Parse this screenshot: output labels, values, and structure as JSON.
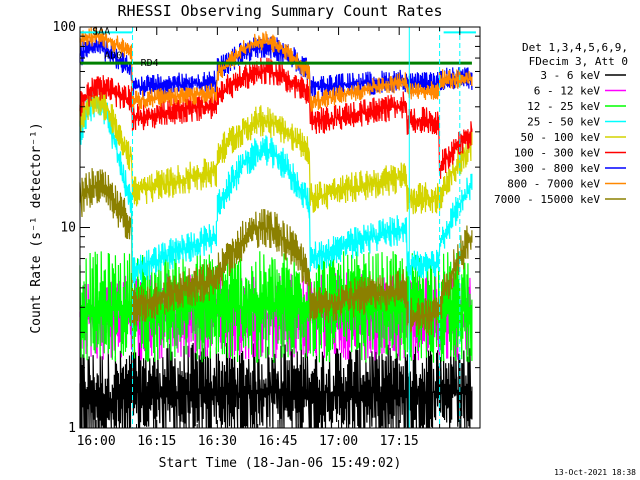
{
  "chart_data": {
    "type": "line",
    "title": "RHESSI Observing Summary Count Rates",
    "xlabel": "Start Time (18-Jan-06 15:49:02)",
    "ylabel": "Count Rate (s⁻¹ detector⁻¹)",
    "yscale": "log",
    "ylim": [
      1,
      100
    ],
    "xlim_minutes": [
      -4,
      95
    ],
    "xtick_labels": [
      "16:00",
      "16:15",
      "16:30",
      "16:45",
      "17:00",
      "17:15"
    ],
    "xtick_minutes": [
      0,
      15,
      30,
      45,
      60,
      75
    ],
    "ytick_labels": [
      "1",
      "10",
      "100"
    ],
    "ytick_values": [
      1,
      10,
      100
    ],
    "legend_header": [
      "Det 1,3,4,5,6,9,",
      "FDecim 3, Att 0"
    ],
    "legend_placement": "right",
    "annotations": [
      {
        "text": "SAA",
        "x_minute": -1,
        "y": 95
      },
      {
        "text": "AD0",
        "x_minute": 2,
        "y": 72
      },
      {
        "text": "RD4",
        "x_minute": 11,
        "y": 66
      }
    ],
    "orbit_transitions_minutes": [
      9,
      30,
      53,
      77,
      85
    ],
    "series": [
      {
        "name": "3 - 6 keV",
        "color": "#000000"
      },
      {
        "name": "6 - 12 keV",
        "color": "#ff00ff"
      },
      {
        "name": "12 - 25 keV",
        "color": "#00ff00"
      },
      {
        "name": "25 - 50 keV",
        "color": "#00ffff"
      },
      {
        "name": "50 - 100 keV",
        "color": "#d4d400"
      },
      {
        "name": "100 - 300 keV",
        "color": "#ff0000"
      },
      {
        "name": "300 - 800 keV",
        "color": "#0000ff"
      },
      {
        "name": "800 - 7000 keV",
        "color": "#ff8800"
      },
      {
        "name": "7000 - 15000 keV",
        "color": "#8b8000"
      }
    ],
    "timestamp": "13-Oct-2021 18:38"
  }
}
